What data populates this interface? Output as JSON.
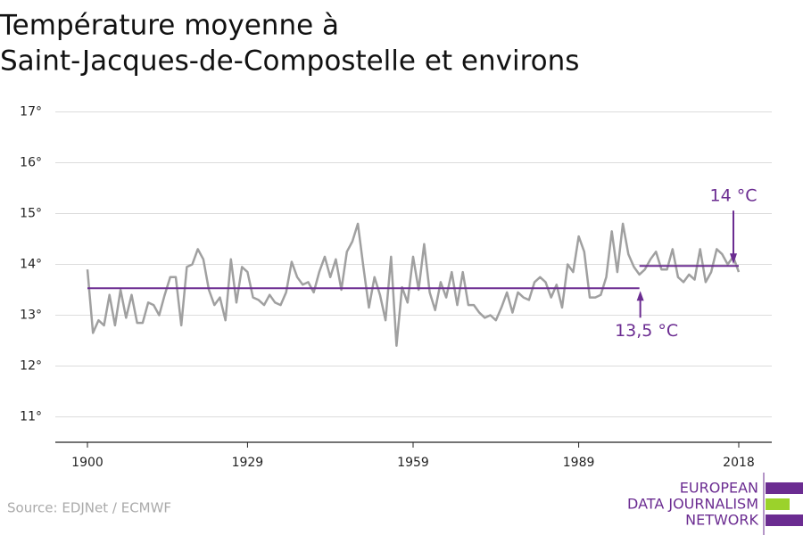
{
  "chart_data": {
    "type": "line",
    "title": "Température moyenne à",
    "subtitle": "Saint-Jacques-de-Compostelle et environs",
    "x": [
      1900,
      1901,
      1902,
      1903,
      1904,
      1905,
      1906,
      1907,
      1908,
      1909,
      1910,
      1911,
      1912,
      1913,
      1914,
      1915,
      1916,
      1917,
      1918,
      1919,
      1920,
      1921,
      1922,
      1923,
      1924,
      1925,
      1926,
      1927,
      1928,
      1929,
      1930,
      1931,
      1932,
      1933,
      1934,
      1935,
      1936,
      1937,
      1938,
      1939,
      1940,
      1941,
      1942,
      1943,
      1944,
      1945,
      1946,
      1947,
      1948,
      1949,
      1950,
      1951,
      1952,
      1953,
      1954,
      1955,
      1956,
      1957,
      1958,
      1959,
      1960,
      1961,
      1962,
      1963,
      1964,
      1965,
      1966,
      1967,
      1968,
      1969,
      1970,
      1971,
      1972,
      1973,
      1974,
      1975,
      1976,
      1977,
      1978,
      1979,
      1980,
      1981,
      1982,
      1983,
      1984,
      1985,
      1986,
      1987,
      1988,
      1989,
      1990,
      1991,
      1992,
      1993,
      1994,
      1995,
      1996,
      1997,
      1998,
      1999,
      2000,
      2001,
      2002,
      2003,
      2004,
      2005,
      2006,
      2007,
      2008,
      2009,
      2010,
      2011,
      2012,
      2013,
      2014,
      2015,
      2016,
      2017,
      2018
    ],
    "series": [
      {
        "color": "#a0a0a0",
        "values": [
          13.9,
          12.65,
          12.9,
          12.8,
          13.4,
          12.8,
          13.5,
          12.95,
          13.4,
          12.85,
          12.85,
          13.25,
          13.2,
          13.0,
          13.4,
          13.75,
          13.75,
          12.8,
          13.95,
          14.0,
          14.3,
          14.1,
          13.5,
          13.2,
          13.35,
          12.9,
          14.1,
          13.25,
          13.95,
          13.85,
          13.35,
          13.3,
          13.2,
          13.4,
          13.25,
          13.2,
          13.45,
          14.05,
          13.75,
          13.6,
          13.65,
          13.45,
          13.85,
          14.15,
          13.75,
          14.1,
          13.5,
          14.25,
          14.45,
          14.8,
          13.95,
          13.15,
          13.75,
          13.4,
          12.9,
          14.15,
          12.4,
          13.55,
          13.25,
          14.15,
          13.5,
          14.4,
          13.45,
          13.1,
          13.65,
          13.35,
          13.85,
          13.2,
          13.85,
          13.2,
          13.2,
          13.05,
          12.95,
          13.0,
          12.9,
          13.15,
          13.45,
          13.05,
          13.45,
          13.35,
          13.3,
          13.65,
          13.75,
          13.65,
          13.35,
          13.6,
          13.15,
          14.0,
          13.85,
          14.55,
          14.25,
          13.35,
          13.35,
          13.4,
          13.75,
          14.65,
          13.85,
          14.8,
          14.2,
          13.95,
          13.8,
          13.9,
          14.1,
          14.25,
          13.9,
          13.9,
          14.3,
          13.75,
          13.65,
          13.8,
          13.7,
          14.3,
          13.65,
          13.85,
          14.3,
          14.2,
          14.0,
          14.15,
          13.85
        ]
      }
    ],
    "reference_lines": [
      {
        "label": "13,5 °C",
        "value": 13.53,
        "from": 1900,
        "to": 2000,
        "color": "#6b2c91"
      },
      {
        "label": "14 °C",
        "value": 13.97,
        "from": 2000,
        "to": 2018,
        "color": "#6b2c91"
      }
    ],
    "xlim": [
      1900,
      2018
    ],
    "xticks": [
      1900,
      1929,
      1959,
      1989,
      2018
    ],
    "ylim": [
      10.5,
      17.2
    ],
    "yticks": [
      {
        "value": 11,
        "label": "11°"
      },
      {
        "value": 12,
        "label": "12°"
      },
      {
        "value": 13,
        "label": "13°"
      },
      {
        "value": 14,
        "label": "14°"
      },
      {
        "value": 15,
        "label": "15°"
      },
      {
        "value": 16,
        "label": "16°"
      },
      {
        "value": 17,
        "label": "17°"
      }
    ],
    "grid": true,
    "source": "Source: EDJNet / ECMWF",
    "logo": [
      "EUROPEAN",
      "DATA JOURNALISM",
      "NETWORK"
    ]
  }
}
